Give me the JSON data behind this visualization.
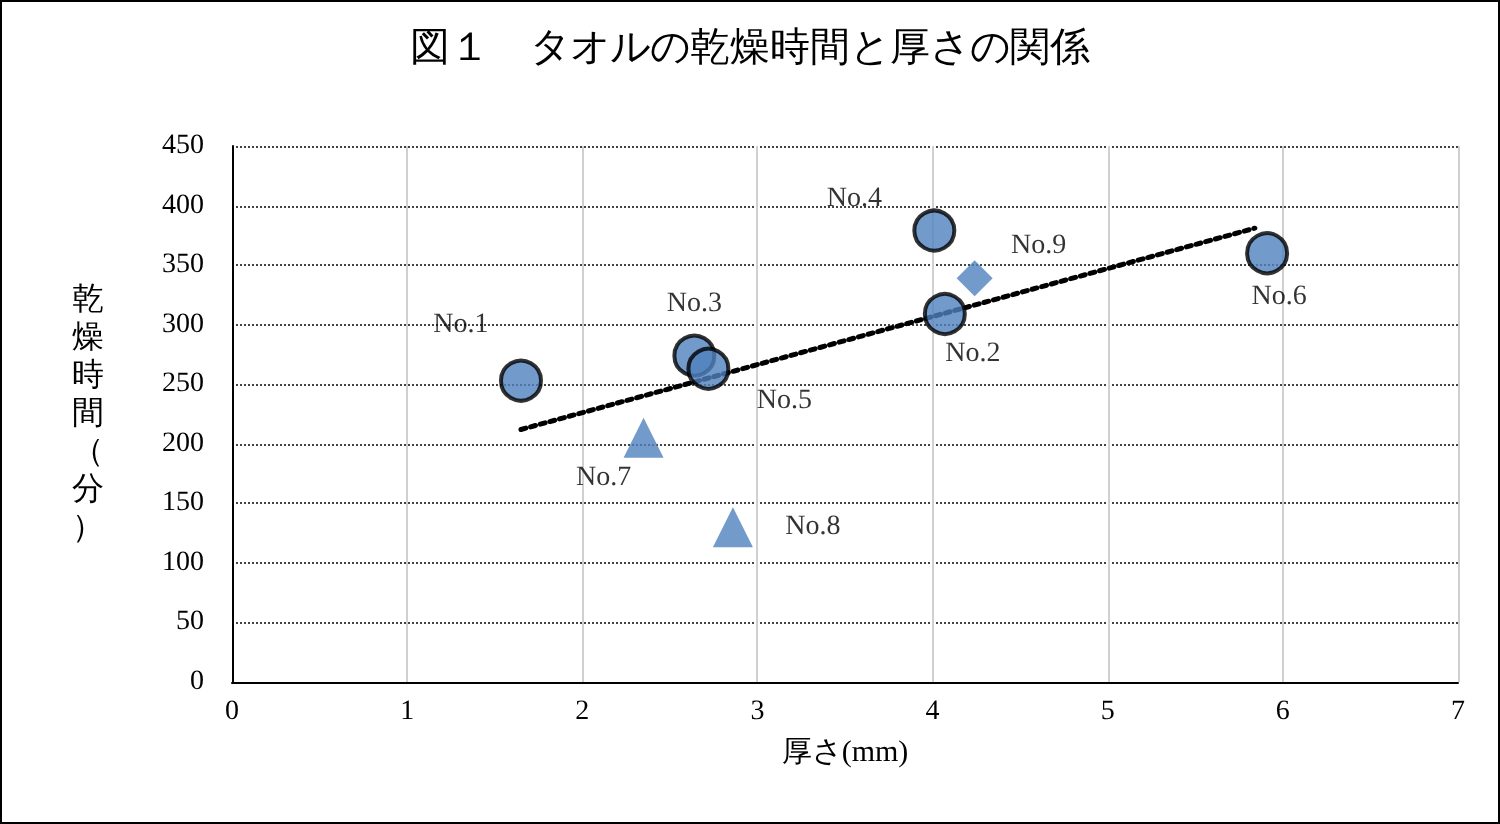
{
  "chart_data": {
    "type": "scatter",
    "title": "図１　タオルの乾燥時間と厚さの関係",
    "xlabel": "厚さ(mm)",
    "ylabel": "乾燥時間（分）",
    "xlim": [
      0,
      7
    ],
    "xticks": [
      0,
      1,
      2,
      3,
      4,
      5,
      6,
      7
    ],
    "ylim": [
      0,
      450
    ],
    "yticks": [
      0,
      50,
      100,
      150,
      200,
      250,
      300,
      350,
      400,
      450
    ],
    "grid": true,
    "series": [
      {
        "type": "scatter",
        "marker": "circle",
        "color": "#4f81bd",
        "x": [
          1.65,
          4.07,
          2.64,
          4.01,
          2.72,
          5.91
        ],
        "values": [
          253,
          309,
          274,
          379,
          263,
          360
        ],
        "value_labels": [
          "No.1",
          "No.2",
          "No.3",
          "No.4",
          "No.5",
          "No.6"
        ]
      },
      {
        "type": "scatter",
        "marker": "triangle",
        "color": "#4f81bd",
        "x": [
          2.35,
          2.86
        ],
        "values": [
          205,
          130
        ],
        "value_labels": [
          "No.7",
          "No.8"
        ]
      },
      {
        "type": "scatter",
        "marker": "diamond",
        "color": "#4f81bd",
        "x": [
          4.24
        ],
        "values": [
          339
        ],
        "value_labels": [
          "No.9"
        ]
      },
      {
        "type": "line",
        "marker": "none",
        "line_style": "dotted",
        "color": "#000000",
        "x": [
          1.65,
          5.84
        ],
        "values": [
          212,
          381
        ]
      }
    ]
  }
}
